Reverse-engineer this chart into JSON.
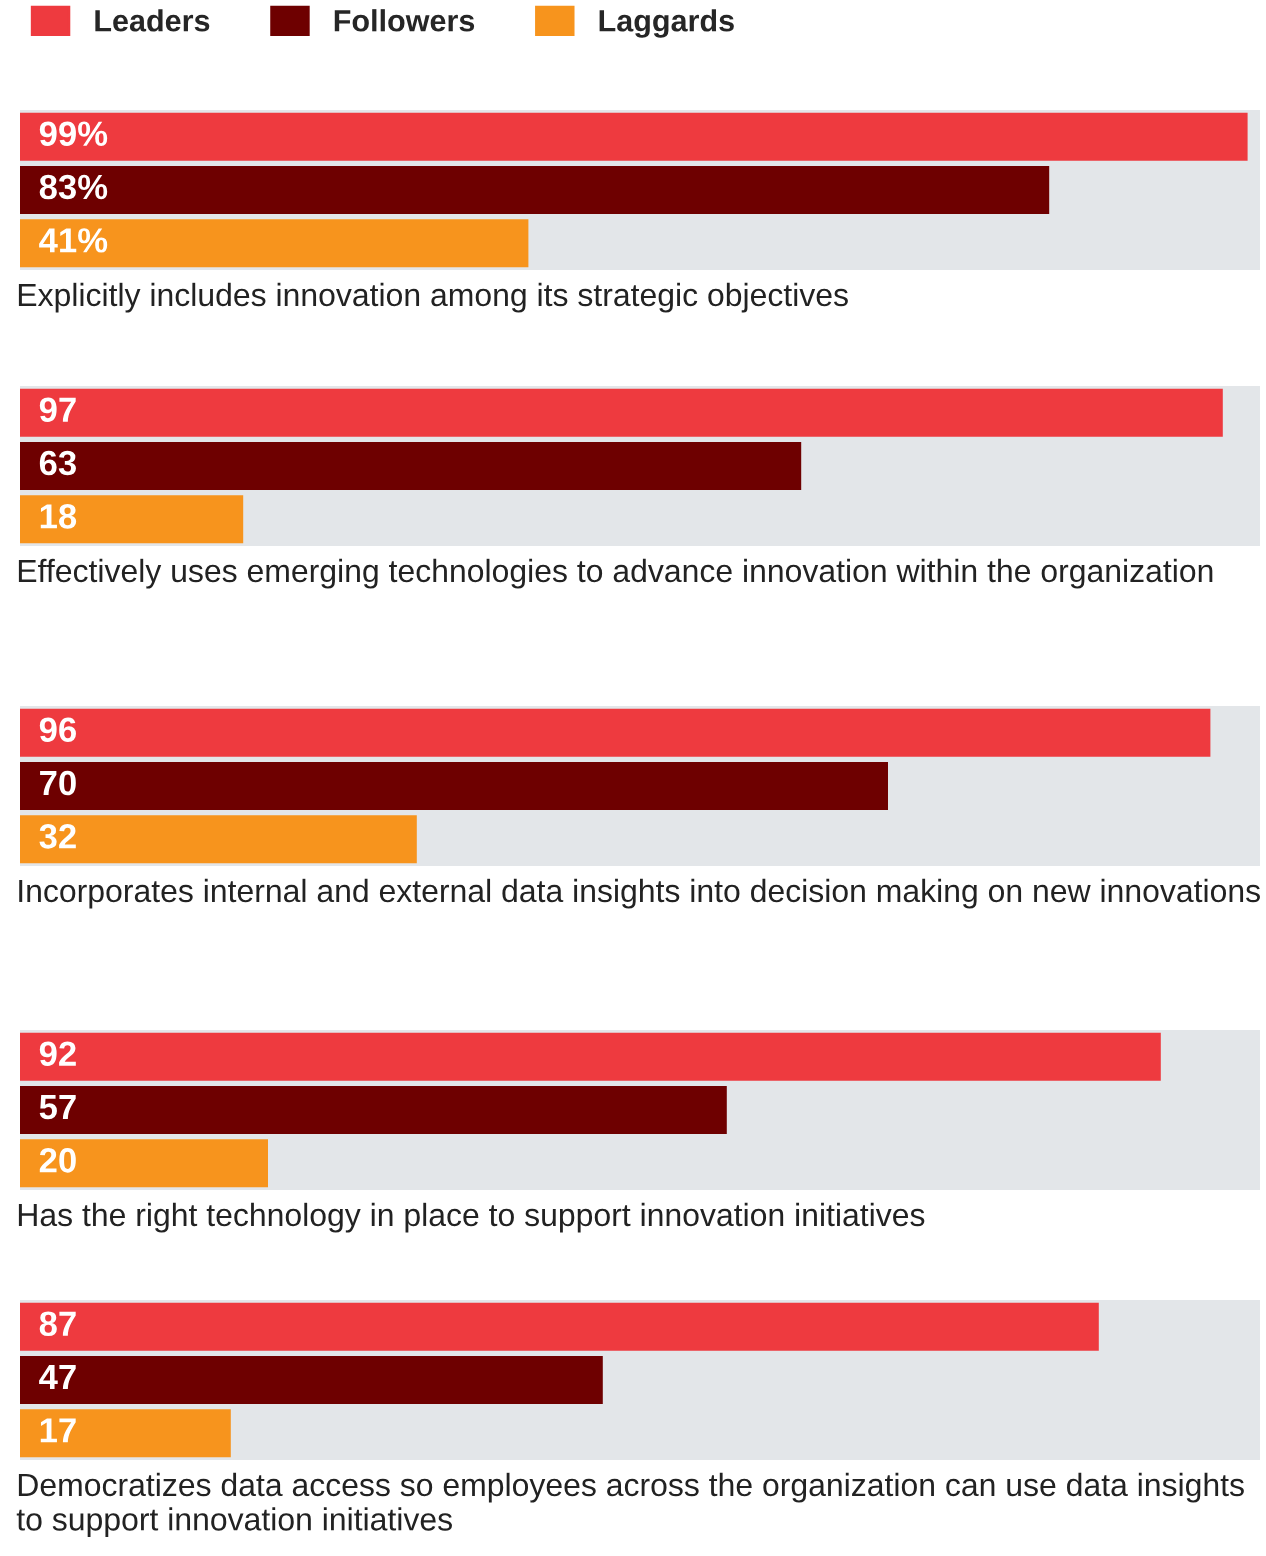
{
  "chart_data": [
    {
      "type": "bar",
      "orientation": "horizontal",
      "xlabel": "Explicitly includes innovation among its strategic objectives",
      "categories": [
        null
      ],
      "xlim": [
        0,
        100
      ],
      "legend": "top left",
      "series": [
        {
          "name": "Leaders",
          "color": "#ee3a3f",
          "values": [
            99
          ],
          "value_labels": [
            "99%"
          ]
        },
        {
          "name": "Followers",
          "color": "#6e0000",
          "values": [
            83
          ],
          "value_labels": [
            "83%"
          ]
        },
        {
          "name": "Laggards",
          "color": "#f7941d",
          "values": [
            41
          ],
          "value_labels": [
            "41%"
          ]
        }
      ]
    },
    {
      "type": "bar",
      "orientation": "horizontal",
      "xlabel": "Effectively uses emerging technologies to advance innovation within the organization",
      "categories": [
        null
      ],
      "xlim": [
        0,
        100
      ],
      "data_labels": true,
      "series": [
        {
          "color": "#ee3a3f",
          "values": [
            97
          ]
        },
        {
          "color": "#6e0000",
          "values": [
            63
          ]
        },
        {
          "color": "#f7941d",
          "values": [
            18
          ]
        }
      ]
    },
    {
      "type": "bar",
      "orientation": "horizontal",
      "xlabel": "Incorporates internal and external data insights into decision making on new innovations",
      "categories": [
        null
      ],
      "xlim": [
        0,
        100
      ],
      "data_labels": true,
      "series": [
        {
          "color": "#ee3a3f",
          "values": [
            96
          ]
        },
        {
          "color": "#6e0000",
          "values": [
            70
          ]
        },
        {
          "color": "#f7941d",
          "values": [
            32
          ]
        }
      ]
    },
    {
      "type": "bar",
      "orientation": "horizontal",
      "xlabel": "Has the right technology in place to support innovation initiatives",
      "categories": [
        null
      ],
      "xlim": [
        0,
        100
      ],
      "data_labels": true,
      "series": [
        {
          "color": "#ee3a3f",
          "values": [
            92
          ]
        },
        {
          "color": "#6e0000",
          "values": [
            57
          ]
        },
        {
          "color": "#f7941d",
          "values": [
            20
          ]
        }
      ]
    },
    {
      "type": "bar",
      "orientation": "horizontal",
      "xlabel": "Democratizes data access so employees across the organization can use data insights to support innovation initiatives",
      "categories": [
        null
      ],
      "xlim": [
        0,
        100
      ],
      "data_labels": true,
      "series": [
        {
          "color": "#ee3a3f",
          "values": [
            87
          ]
        },
        {
          "color": "#6e0000",
          "values": [
            47
          ]
        },
        {
          "color": "#f7941d",
          "values": [
            17
          ]
        }
      ]
    }
  ]
}
